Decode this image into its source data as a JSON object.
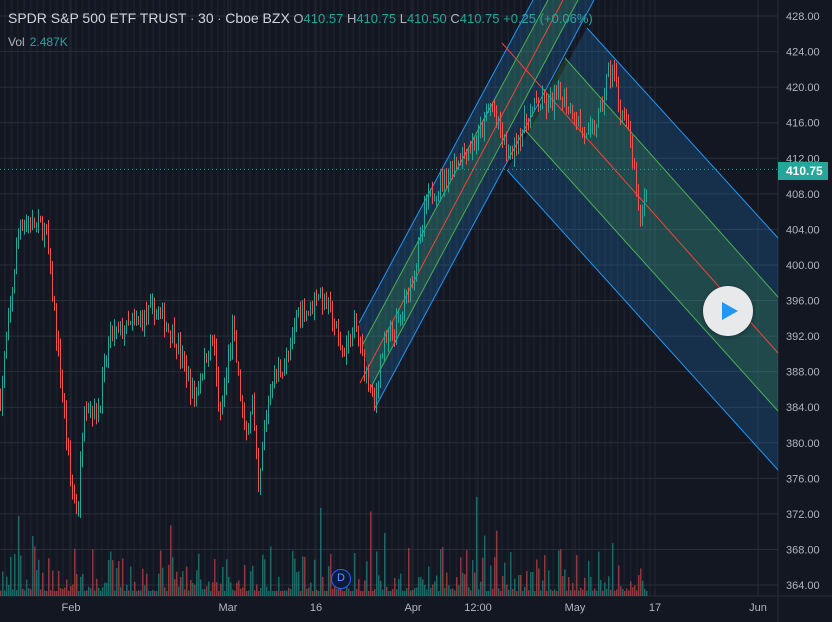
{
  "header": {
    "title": "SPDR S&P 500 ETF TRUST",
    "sep1": "·",
    "interval": "30",
    "sep2": "·",
    "exchange": "Cboe BZX",
    "o_label": "O",
    "o": "410.57",
    "h_label": "H",
    "h": "410.75",
    "l_label": "L",
    "l": "410.50",
    "c_label": "C",
    "c": "410.75",
    "change": "+0.25 (+0.06%)"
  },
  "volume": {
    "label": "Vol",
    "value": "2.487K"
  },
  "last_price": "410.75",
  "dividend_marker": "D",
  "colors": {
    "up": "#26a69a",
    "down": "#ef5350",
    "channel_blue": "#2196f3",
    "channel_green": "#4caf50",
    "median": "#f44336"
  },
  "chart_data": {
    "type": "candlestick",
    "title": "SPDR S&P 500 ETF TRUST · 30 · Cboe BZX",
    "ylim": [
      362,
      428
    ],
    "y_ticks": [
      "428.00",
      "424.00",
      "420.00",
      "416.00",
      "412.00",
      "408.00",
      "404.00",
      "400.00",
      "396.00",
      "392.00",
      "388.00",
      "384.00",
      "380.00",
      "376.00",
      "372.00",
      "368.00",
      "364.00"
    ],
    "x_ticks": [
      "Feb",
      "Mar",
      "16",
      "Apr",
      "12:00",
      "May",
      "17",
      "Jun"
    ],
    "approx_close_path": [
      [
        0,
        385
      ],
      [
        3,
        405
      ],
      [
        7,
        404
      ],
      [
        9,
        390
      ],
      [
        11,
        375
      ],
      [
        12,
        372
      ],
      [
        13,
        385
      ],
      [
        15,
        383
      ],
      [
        17,
        392
      ],
      [
        20,
        393
      ],
      [
        24,
        395
      ],
      [
        27,
        392
      ],
      [
        30,
        385
      ],
      [
        32,
        390
      ],
      [
        33,
        392
      ],
      [
        34,
        382
      ],
      [
        36,
        393
      ],
      [
        38,
        380
      ],
      [
        39,
        385
      ],
      [
        40,
        374
      ],
      [
        41,
        382
      ],
      [
        42,
        387
      ],
      [
        45,
        390
      ],
      [
        46,
        395
      ],
      [
        48,
        395
      ],
      [
        49,
        397
      ],
      [
        51,
        395
      ],
      [
        53,
        390
      ],
      [
        55,
        393
      ],
      [
        56,
        390
      ],
      [
        58,
        384
      ],
      [
        59,
        390
      ],
      [
        62,
        394
      ],
      [
        65,
        402
      ],
      [
        66,
        407
      ],
      [
        69,
        410
      ],
      [
        71,
        412
      ],
      [
        74,
        414
      ],
      [
        76,
        418
      ],
      [
        79,
        412
      ],
      [
        80,
        414
      ],
      [
        83,
        418
      ],
      [
        85,
        418
      ],
      [
        87,
        419
      ],
      [
        89,
        417
      ],
      [
        91,
        414
      ],
      [
        93,
        417
      ],
      [
        94,
        421
      ],
      [
        95,
        422
      ],
      [
        96,
        418
      ],
      [
        97,
        416
      ],
      [
        98,
        412
      ],
      [
        99,
        405
      ],
      [
        100,
        408
      ],
      [
        100.5,
        411
      ]
    ],
    "grid": true
  }
}
